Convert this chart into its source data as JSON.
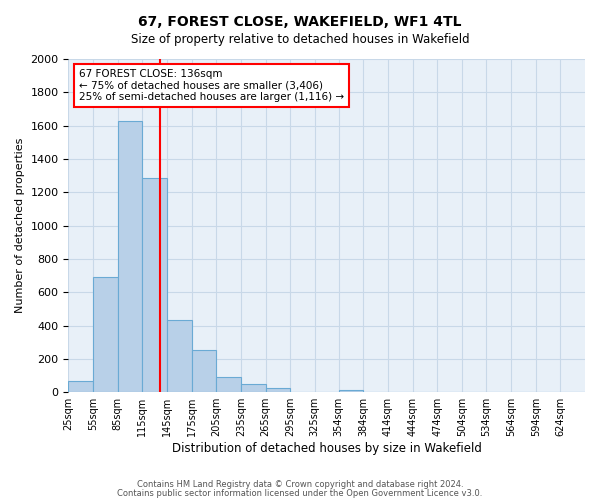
{
  "title": "67, FOREST CLOSE, WAKEFIELD, WF1 4TL",
  "subtitle": "Size of property relative to detached houses in Wakefield",
  "xlabel": "Distribution of detached houses by size in Wakefield",
  "ylabel": "Number of detached properties",
  "bar_color": "#b8d0e8",
  "bar_edge_color": "#6aaad4",
  "red_line_x": 136,
  "annotation_title": "67 FOREST CLOSE: 136sqm",
  "annotation_line1": "← 75% of detached houses are smaller (3,406)",
  "annotation_line2": "25% of semi-detached houses are larger (1,116) →",
  "footer1": "Contains HM Land Registry data © Crown copyright and database right 2024.",
  "footer2": "Contains public sector information licensed under the Open Government Licence v3.0.",
  "bin_labels": [
    "25sqm",
    "55sqm",
    "85sqm",
    "115sqm",
    "145sqm",
    "175sqm",
    "205sqm",
    "235sqm",
    "265sqm",
    "295sqm",
    "325sqm",
    "354sqm",
    "384sqm",
    "414sqm",
    "444sqm",
    "474sqm",
    "504sqm",
    "534sqm",
    "564sqm",
    "594sqm",
    "624sqm"
  ],
  "bin_edges": [
    25,
    55,
    85,
    115,
    145,
    175,
    205,
    235,
    265,
    295,
    325,
    354,
    384,
    414,
    444,
    474,
    504,
    534,
    564,
    594,
    624,
    654
  ],
  "counts": [
    65,
    690,
    1630,
    1285,
    435,
    252,
    90,
    52,
    27,
    0,
    0,
    15,
    0,
    0,
    0,
    0,
    0,
    0,
    0,
    0,
    0
  ],
  "ylim": [
    0,
    2000
  ],
  "yticks": [
    0,
    200,
    400,
    600,
    800,
    1000,
    1200,
    1400,
    1600,
    1800,
    2000
  ],
  "background_color": "#ffffff",
  "ax_background_color": "#e8f0f8",
  "grid_color": "#c8d8e8"
}
